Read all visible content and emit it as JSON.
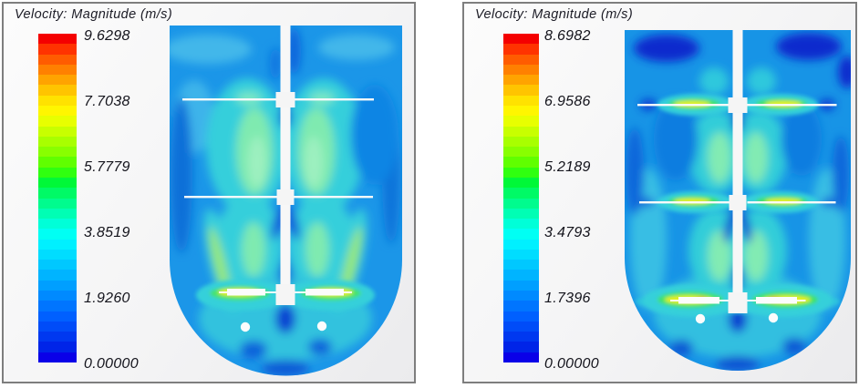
{
  "window": {
    "background": "#ffffff",
    "panel_border": "#7e7e7e"
  },
  "panels": [
    {
      "title": "Velocity: Magnitude (m/s)",
      "colorbar_ticks": [
        "9.6298",
        "7.7038",
        "5.7779",
        "3.8519",
        "1.9260",
        "0.00000"
      ]
    },
    {
      "title": "Velocity: Magnitude (m/s)",
      "colorbar_ticks": [
        "8.6982",
        "6.9586",
        "5.2189",
        "3.4793",
        "1.7396",
        "0.00000"
      ]
    }
  ],
  "colormap_bands_top_to_bottom": [
    "#f40000",
    "#ff3300",
    "#ff5c00",
    "#ff8000",
    "#ffa300",
    "#ffc400",
    "#ffe200",
    "#fff600",
    "#e8ff00",
    "#c8ff00",
    "#a8ff00",
    "#88ff00",
    "#60ff00",
    "#30ff10",
    "#00f838",
    "#00fa66",
    "#00fc8e",
    "#00feb4",
    "#00ffd8",
    "#00fff4",
    "#00f0ff",
    "#00ddff",
    "#00c8ff",
    "#00b4ff",
    "#009fff",
    "#008aff",
    "#0075ff",
    "#0060ff",
    "#004cf8",
    "#0038f0",
    "#0024e8",
    "#0a00e8"
  ],
  "field_palette": {
    "base_blue": "#1b96e8",
    "dark_blue": "#0c66dc",
    "navy_low_velocity": "#0d2ccd",
    "cyan_plume": "#36cfdb",
    "green_core": "#7feab0",
    "yellow_jet": "#eef202",
    "orange_jet": "#ff9000",
    "geometry_white": "#f7f7f7"
  },
  "chart_data": [
    {
      "type": "heatmap",
      "title": "Velocity: Magnitude (m/s)",
      "units": "m/s",
      "value_range": [
        0,
        9.6298
      ],
      "colorbar_ticks": [
        9.6298,
        7.7038,
        5.7779,
        3.8519,
        1.926,
        0.0
      ],
      "colorbar_band_count": 32,
      "colormap": "rainbow: blue (0) -> cyan -> green -> yellow -> orange -> red (max)",
      "legend_position": "left",
      "scene": "CFD velocity-magnitude contour, vertical mid-plane of a round-bottom stirred tank with central shaft and three impellers plus two sparger holes",
      "notable_features": [
        "Highest velocity (yellow, ~6-8 m/s) at bottom impeller blade tips",
        "Cyan plumes (~2-3.5 m/s) with light-green cores flank the shaft between impellers",
        "Diagonal discharge streaks from bottom impeller toward vessel walls",
        "Bulk flow mostly blue (~1-1.5 m/s); darker blue near walls and below hubs"
      ]
    },
    {
      "type": "heatmap",
      "title": "Velocity: Magnitude (m/s)",
      "units": "m/s",
      "value_range": [
        0,
        8.6982
      ],
      "colorbar_ticks": [
        8.6982,
        6.9586,
        5.2189,
        3.4793,
        1.7396,
        0.0
      ],
      "colorbar_band_count": 32,
      "colormap": "rainbow: blue (0) -> cyan -> green -> yellow -> orange -> red (max)",
      "legend_position": "left",
      "scene": "CFD velocity-magnitude contour, vertical mid-plane of the same stirred tank at a different condition",
      "notable_features": [
        "All three impellers show yellow-orange tip jets (~5-8.7 m/s), strongest at bottom impeller",
        "Dark navy low-velocity pockets (<0.5 m/s) in upper corners near the free surface",
        "Cyan columns with green cores along the shaft between impellers",
        "Light cyan band across the hemispherical bottom"
      ]
    }
  ]
}
